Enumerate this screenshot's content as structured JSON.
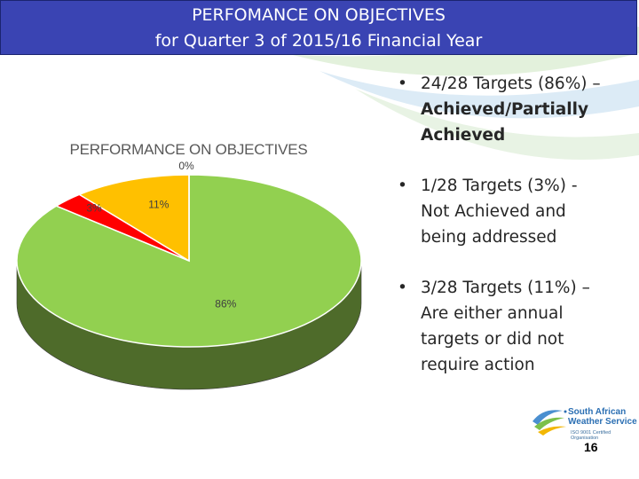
{
  "header": {
    "title_line1": "PERFOMANCE ON OBJECTIVES",
    "title_line2": "for Quarter 3 of 2015/16 Financial Year"
  },
  "chart_data": {
    "type": "pie",
    "title": "PERFORMANCE ON OBJECTIVES",
    "slices": [
      {
        "label": "86%",
        "value": 86,
        "color": "#92d050",
        "side_color": "#4e6b2a"
      },
      {
        "label": "3%",
        "value": 3,
        "color": "#ff0000",
        "side_color": "#8a0000"
      },
      {
        "label": "11%",
        "value": 11,
        "color": "#ffc000",
        "side_color": "#8a6800"
      },
      {
        "label": "0%",
        "value": 0,
        "color": "#ffffff",
        "side_color": "#888888"
      }
    ]
  },
  "bullets": [
    {
      "line1": "24/28 Targets (86%) –",
      "line2": "Achieved/Partially",
      "line3": "Achieved"
    },
    {
      "line1": "1/28 Targets (3%) -",
      "line2": "Not Achieved and",
      "line3": "being addressed"
    },
    {
      "line1": "3/28 Targets (11%) –",
      "line2": "Are either annual",
      "line3": "targets or did not",
      "line4": "require action"
    }
  ],
  "logo": {
    "line1": "South African",
    "line2": "Weather Service",
    "sub": "ISO 9001 Certified Organisation"
  },
  "page_number": "16",
  "colors": {
    "title_bar": "#3a44b3",
    "swoosh_green": "#d7ecd0",
    "swoosh_blue": "#d5e6f3"
  }
}
